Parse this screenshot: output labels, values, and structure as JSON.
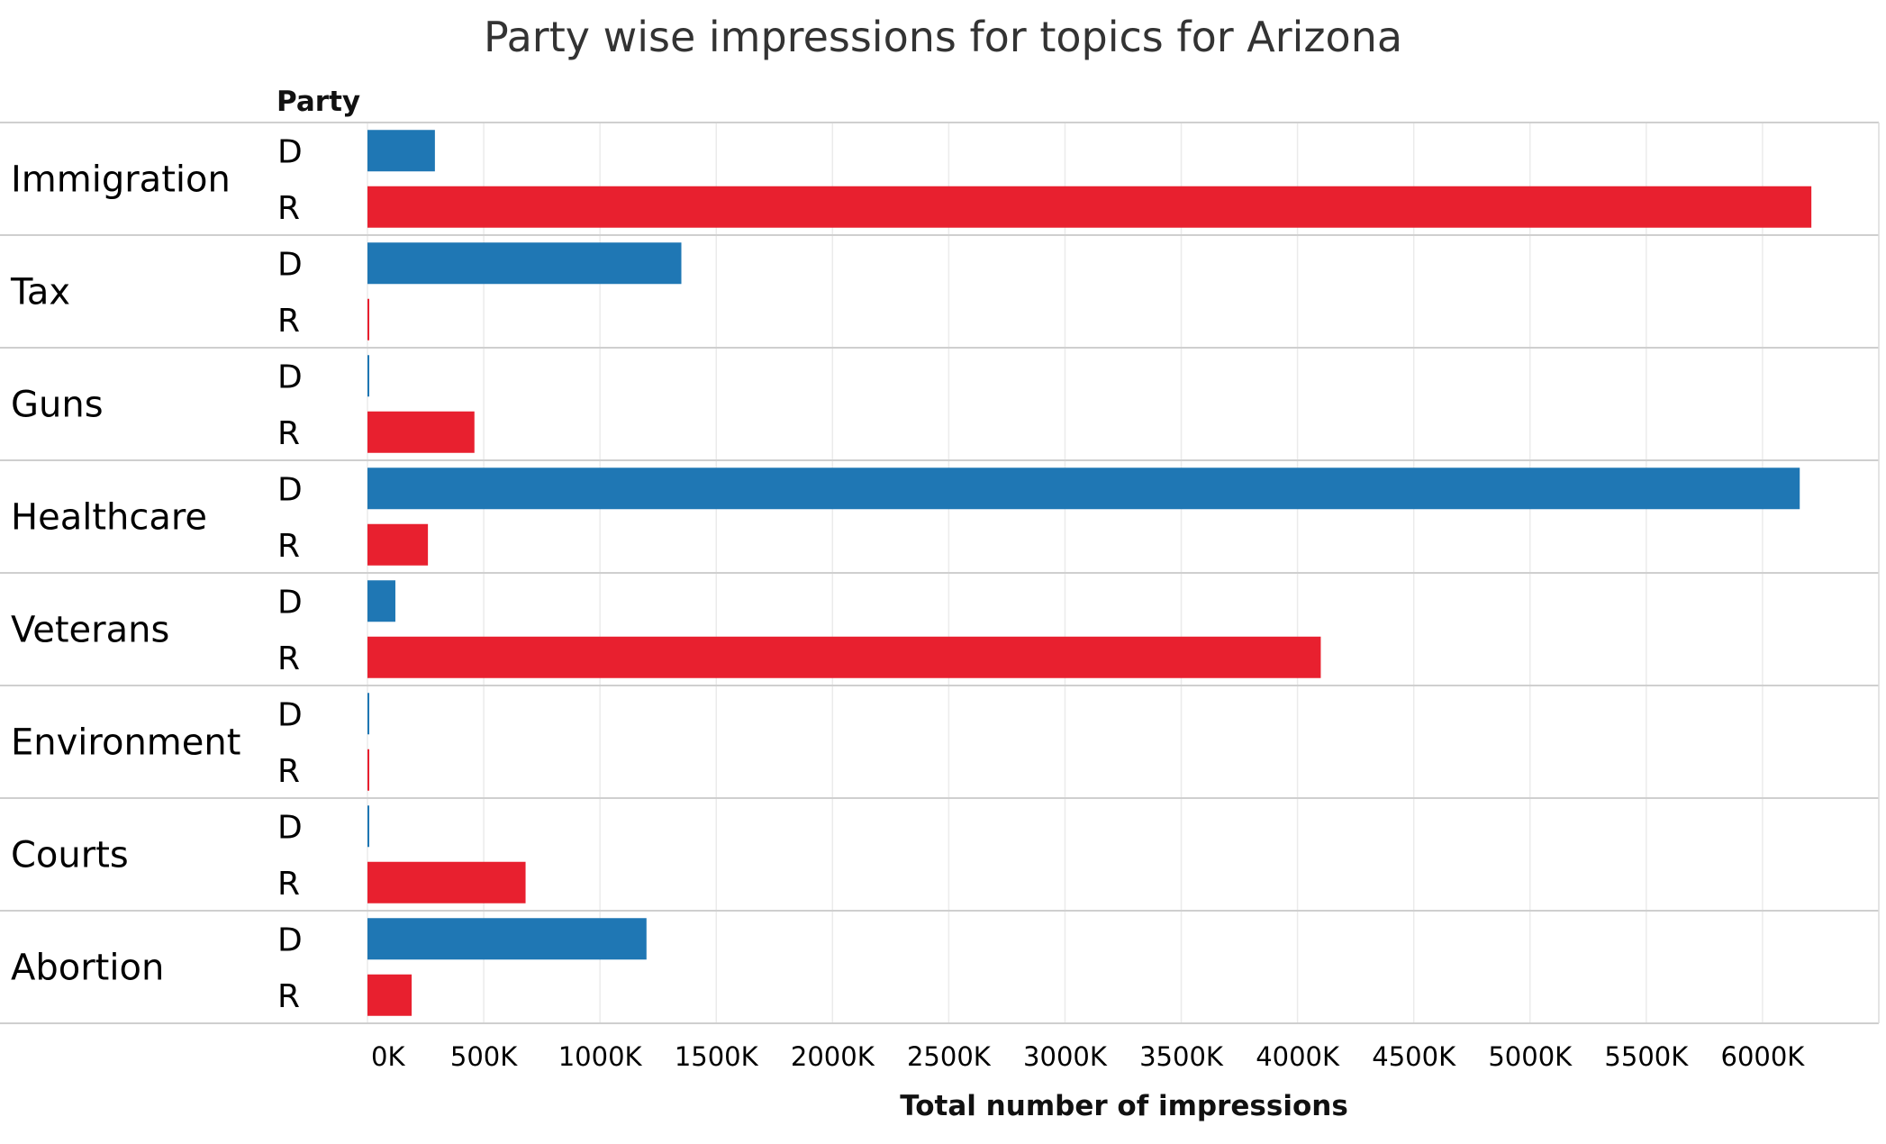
{
  "chart_data": {
    "type": "bar",
    "orientation": "horizontal",
    "title": "Party wise impressions for topics for  Arizona",
    "row_header": "Party",
    "xlabel": "Total number of impressions",
    "xlim": [
      0,
      6500
    ],
    "x_ticks": [
      0,
      500,
      1000,
      1500,
      2000,
      2500,
      3000,
      3500,
      4000,
      4500,
      5000,
      5500,
      6000
    ],
    "x_tick_labels": [
      "0K",
      "500K",
      "1000K",
      "1500K",
      "2000K",
      "2500K",
      "3000K",
      "3500K",
      "4000K",
      "4500K",
      "5000K",
      "5500K",
      "6000K"
    ],
    "value_unit": "thousands of impressions",
    "grid": true,
    "parties": [
      "D",
      "R"
    ],
    "colors": {
      "D": "#1f77b4",
      "R": "#e8202f"
    },
    "categories": [
      "Immigration",
      "Tax",
      "Guns",
      "Healthcare",
      "Veterans",
      "Environment",
      "Courts",
      "Abortion"
    ],
    "series": [
      {
        "name": "D",
        "values": [
          290,
          1350,
          5,
          6160,
          120,
          5,
          5,
          1200
        ]
      },
      {
        "name": "R",
        "values": [
          6210,
          5,
          460,
          260,
          4100,
          5,
          680,
          190
        ]
      }
    ]
  }
}
